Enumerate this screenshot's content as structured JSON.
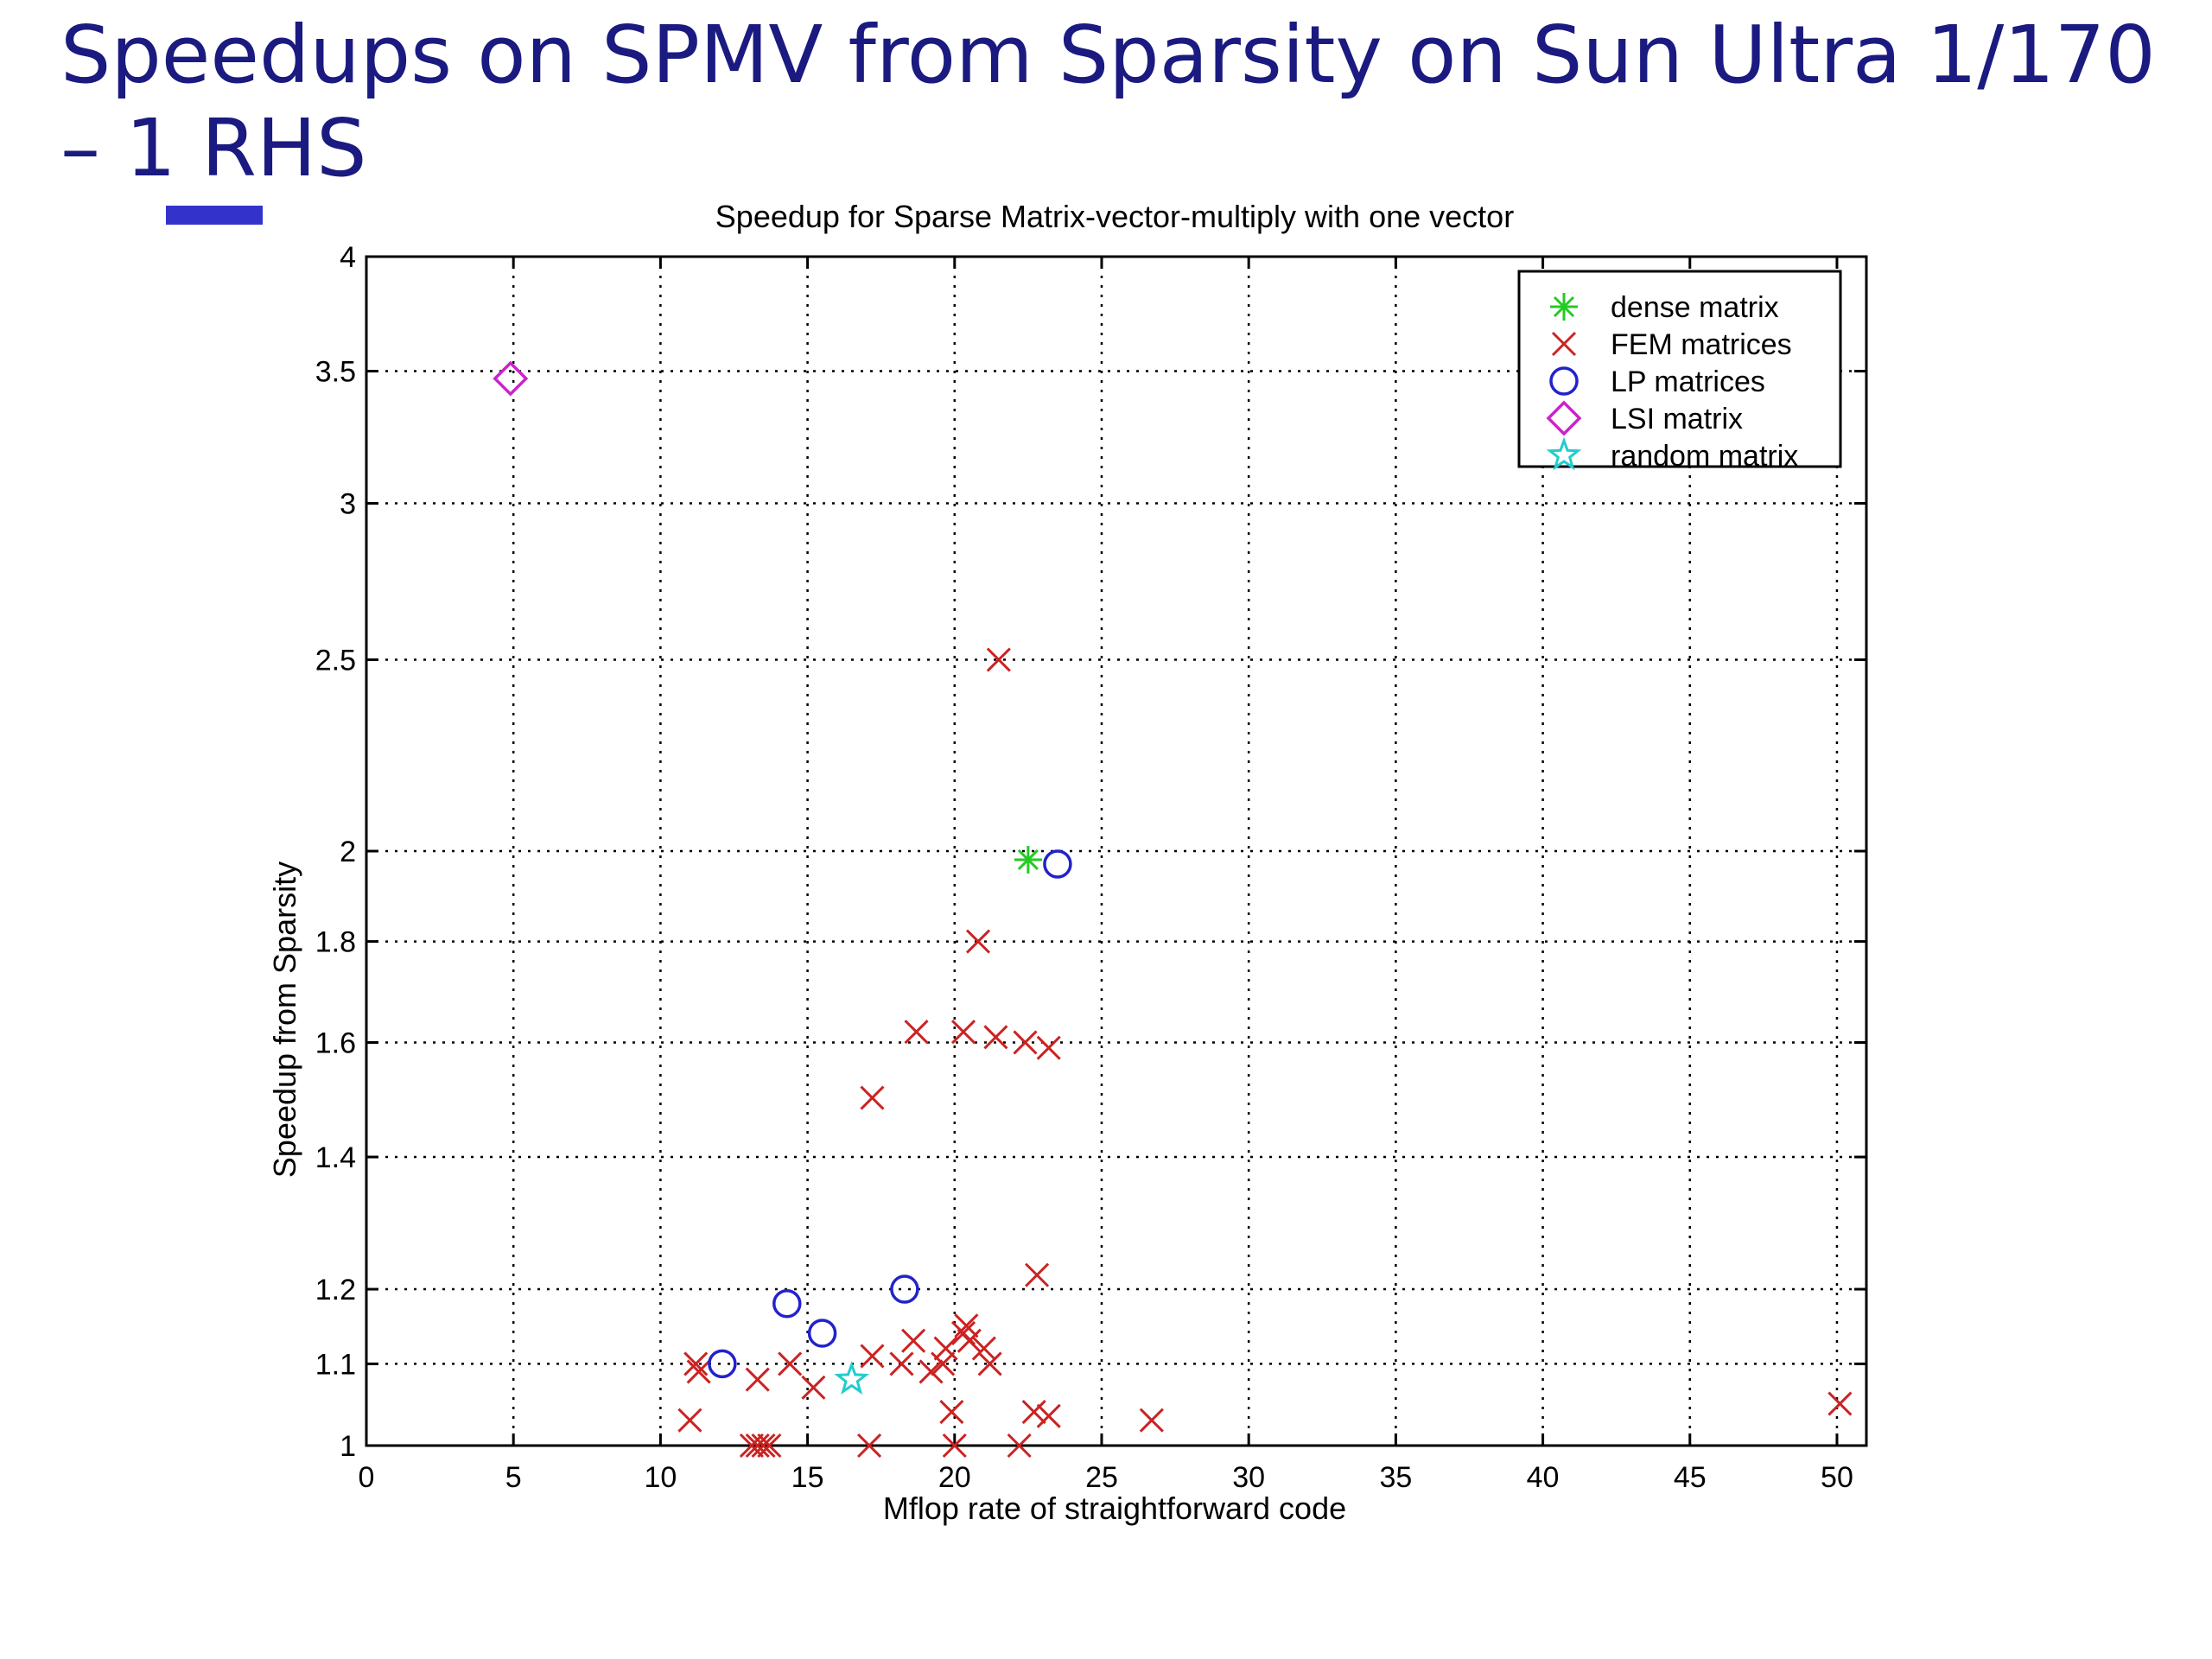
{
  "slide": {
    "title": "Speedups on SPMV from Sparsity on Sun Ultra 1/170 – 1 RHS"
  },
  "chart_data": {
    "type": "scatter",
    "title": "Speedup for Sparse Matrix-vector-multiply with one vector",
    "xlabel": "Mflop rate of straightforward code",
    "ylabel": "Speedup from Sparsity",
    "xlim": [
      0,
      51
    ],
    "ylim": [
      1,
      4
    ],
    "y_scale": "log",
    "xticks": [
      "0",
      "5",
      "10",
      "15",
      "20",
      "25",
      "30",
      "35",
      "40",
      "45",
      "50"
    ],
    "yticks": [
      {
        "value": 1,
        "label": "1"
      },
      {
        "value": 1.1,
        "label": "1.1"
      },
      {
        "value": 1.2,
        "label": "1.2"
      },
      {
        "value": 1.4,
        "label": "1.4"
      },
      {
        "value": 1.6,
        "label": "1.6"
      },
      {
        "value": 1.8,
        "label": "1.8"
      },
      {
        "value": 2,
        "label": "2"
      },
      {
        "value": 2.5,
        "label": "2.5"
      },
      {
        "value": 3,
        "label": "3"
      },
      {
        "value": 3.5,
        "label": "3.5"
      },
      {
        "value": 4,
        "label": "4"
      }
    ],
    "grid": true,
    "legend_position": "top-right",
    "series": [
      {
        "name": "dense matrix",
        "marker": "asterisk",
        "color": "#22cc22",
        "x": [
          22.5
        ],
        "y": [
          1.98
        ]
      },
      {
        "name": "FEM matrices",
        "marker": "x",
        "color": "#cc2222",
        "x": [
          21.5,
          20.8,
          18.7,
          20.3,
          21.4,
          22.4,
          23.2,
          17.2,
          22.8,
          11.0,
          11.3,
          11.2,
          13.1,
          13.3,
          13.5,
          13.7,
          13.3,
          14.4,
          15.2,
          17.1,
          17.2,
          18.2,
          18.6,
          19.2,
          19.6,
          19.7,
          19.9,
          20.0,
          20.3,
          20.4,
          20.5,
          21.0,
          21.2,
          22.2,
          22.7,
          23.2,
          26.7,
          50.1
        ],
        "y": [
          2.5,
          1.8,
          1.62,
          1.62,
          1.61,
          1.6,
          1.59,
          1.5,
          1.22,
          1.03,
          1.09,
          1.1,
          1.0,
          1.0,
          1.0,
          1.0,
          1.08,
          1.1,
          1.07,
          1.0,
          1.11,
          1.1,
          1.13,
          1.09,
          1.1,
          1.12,
          1.04,
          1.0,
          1.14,
          1.15,
          1.13,
          1.12,
          1.1,
          1.0,
          1.04,
          1.035,
          1.03,
          1.05
        ]
      },
      {
        "name": "LP matrices",
        "marker": "circle",
        "color": "#2222cc",
        "x": [
          23.5,
          14.3,
          18.3,
          15.5,
          12.1
        ],
        "y": [
          1.97,
          1.18,
          1.2,
          1.14,
          1.1
        ]
      },
      {
        "name": "LSI matrix",
        "marker": "diamond",
        "color": "#cc22cc",
        "x": [
          4.9
        ],
        "y": [
          3.47
        ]
      },
      {
        "name": "random matrix",
        "marker": "star",
        "color": "#22cccc",
        "x": [
          16.5
        ],
        "y": [
          1.08
        ]
      }
    ]
  }
}
